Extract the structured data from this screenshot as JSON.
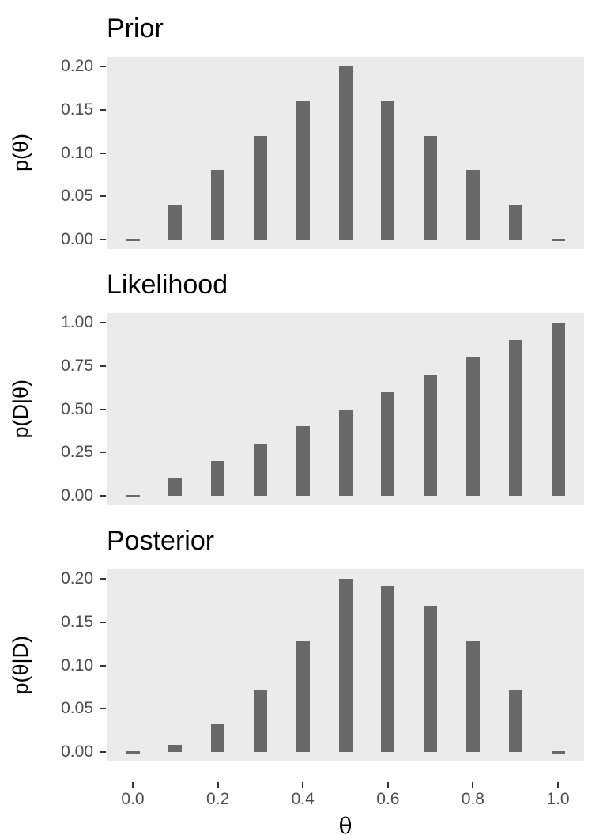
{
  "colors": {
    "bar": "#686868",
    "panel_bg": "#ebebeb",
    "axis_text": "#4d4d4d",
    "tick_mark": "#333333",
    "title_text": "#000000"
  },
  "x_axis": {
    "title": "θ",
    "tick_values": [
      0,
      0.2,
      0.4,
      0.6,
      0.8,
      1.0
    ],
    "tick_labels": [
      "0.0",
      "0.2",
      "0.4",
      "0.6",
      "0.8",
      "1.0"
    ]
  },
  "chart_data": [
    {
      "type": "bar",
      "title": "Prior",
      "ylabel": "p(θ)",
      "xlabel": "θ",
      "x": [
        0,
        0.1,
        0.2,
        0.3,
        0.4,
        0.5,
        0.6,
        0.7,
        0.8,
        0.9,
        1.0
      ],
      "values": [
        0,
        0.04,
        0.08,
        0.12,
        0.16,
        0.2,
        0.16,
        0.12,
        0.08,
        0.04,
        0
      ],
      "ylim": [
        0,
        0.2
      ],
      "ytick_values": [
        0,
        0.05,
        0.1,
        0.15,
        0.2
      ],
      "ytick_labels": [
        "0.00",
        "0.05",
        "0.10",
        "0.15",
        "0.20"
      ],
      "grid": false,
      "legend": false
    },
    {
      "type": "bar",
      "title": "Likelihood",
      "ylabel": "p(D|θ)",
      "xlabel": "θ",
      "x": [
        0,
        0.1,
        0.2,
        0.3,
        0.4,
        0.5,
        0.6,
        0.7,
        0.8,
        0.9,
        1.0
      ],
      "values": [
        0,
        0.1,
        0.2,
        0.3,
        0.4,
        0.5,
        0.6,
        0.7,
        0.8,
        0.9,
        1.0
      ],
      "ylim": [
        0,
        1.0
      ],
      "ytick_values": [
        0,
        0.25,
        0.5,
        0.75,
        1.0
      ],
      "ytick_labels": [
        "0.00",
        "0.25",
        "0.50",
        "0.75",
        "1.00"
      ],
      "grid": false,
      "legend": false
    },
    {
      "type": "bar",
      "title": "Posterior",
      "ylabel": "p(θ|D)",
      "xlabel": "θ",
      "x": [
        0,
        0.1,
        0.2,
        0.3,
        0.4,
        0.5,
        0.6,
        0.7,
        0.8,
        0.9,
        1.0
      ],
      "values": [
        0,
        0.008,
        0.032,
        0.072,
        0.128,
        0.2,
        0.192,
        0.168,
        0.128,
        0.072,
        0
      ],
      "ylim": [
        0,
        0.2
      ],
      "ytick_values": [
        0,
        0.05,
        0.1,
        0.15,
        0.2
      ],
      "ytick_labels": [
        "0.00",
        "0.05",
        "0.10",
        "0.15",
        "0.20"
      ],
      "grid": false,
      "legend": false
    }
  ]
}
